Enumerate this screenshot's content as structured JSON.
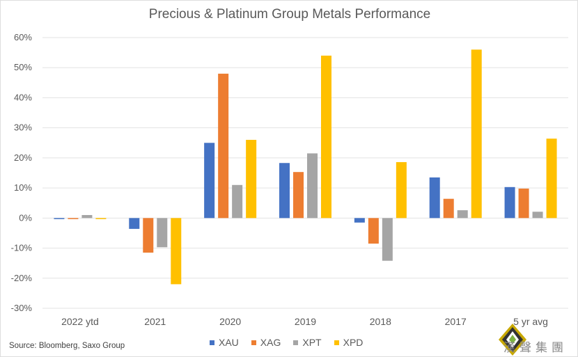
{
  "chart_data": {
    "type": "bar",
    "title": "Precious & Platinum Group Metals Performance",
    "categories": [
      "2022 ytd",
      "2021",
      "2020",
      "2019",
      "2018",
      "2017",
      "5 yr avg"
    ],
    "series": [
      {
        "name": "XAU",
        "color": "#4472C4",
        "values": [
          -0.3,
          -3.6,
          25.0,
          18.3,
          -1.5,
          13.5,
          10.3
        ]
      },
      {
        "name": "XAG",
        "color": "#ED7D31",
        "values": [
          -0.3,
          -11.5,
          48.0,
          15.3,
          -8.5,
          6.4,
          9.8
        ]
      },
      {
        "name": "XPT",
        "color": "#A5A5A5",
        "values": [
          1.0,
          -9.7,
          11.0,
          21.5,
          -14.2,
          2.6,
          2.1
        ]
      },
      {
        "name": "XPD",
        "color": "#FFC000",
        "values": [
          0.0,
          -22.0,
          26.0,
          54.0,
          18.6,
          56.0,
          26.4
        ]
      }
    ],
    "ylim": [
      -30,
      60
    ],
    "yticks": [
      "-30%",
      "-20%",
      "-10%",
      "0%",
      "10%",
      "20%",
      "30%",
      "40%",
      "50%",
      "60%"
    ],
    "grid": true,
    "legend": "bottom",
    "xlabel": "",
    "ylabel": ""
  },
  "source": "Source: Bloomberg, Saxo Group",
  "watermark": "漢聲集團"
}
